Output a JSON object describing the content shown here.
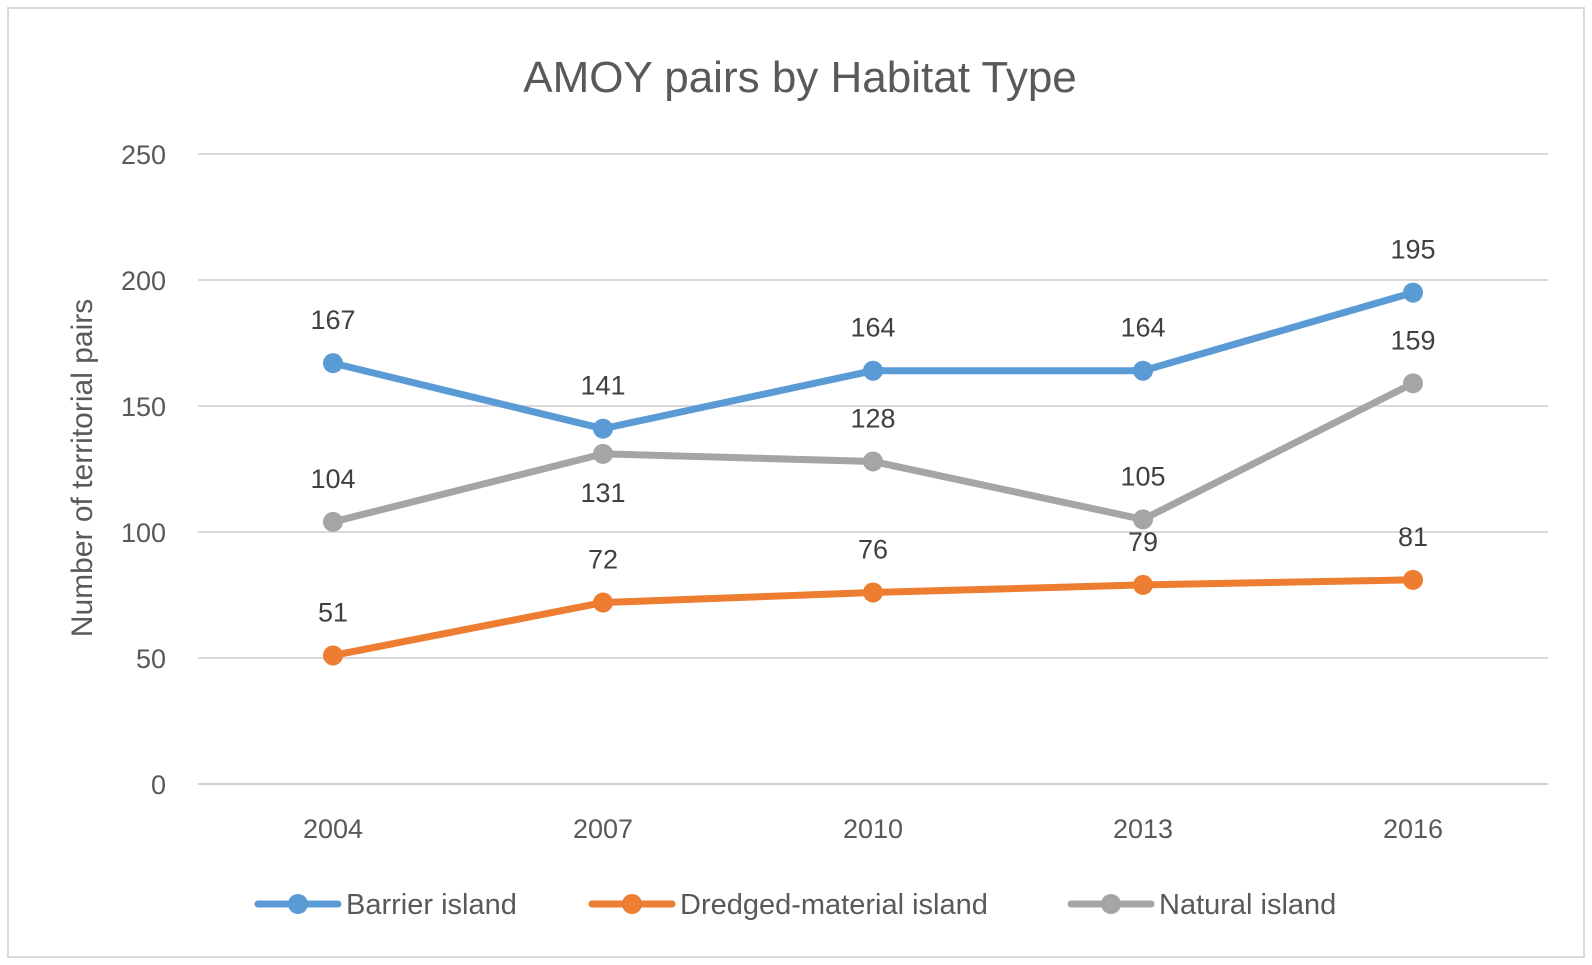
{
  "chart_data": {
    "type": "line",
    "title": "AMOY pairs by Habitat Type",
    "xlabel": "",
    "ylabel": "Number of territorial pairs",
    "categories": [
      "2004",
      "2007",
      "2010",
      "2013",
      "2016"
    ],
    "ylim": [
      0,
      250
    ],
    "yticks": [
      0,
      50,
      100,
      150,
      200,
      250
    ],
    "grid": true,
    "legend_position": "bottom",
    "series": [
      {
        "name": "Barrier island",
        "color": "#5B9BD5",
        "values": [
          167,
          141,
          164,
          164,
          195
        ],
        "labels": [
          "167",
          "141",
          "164",
          "164",
          "195"
        ]
      },
      {
        "name": "Dredged-material island",
        "color": "#ED7D31",
        "values": [
          51,
          72,
          76,
          79,
          81
        ],
        "labels": [
          "51",
          "72",
          "76",
          "79",
          "81"
        ]
      },
      {
        "name": "Natural island",
        "color": "#A5A5A5",
        "values": [
          104,
          131,
          128,
          105,
          159
        ],
        "labels": [
          "104",
          "131",
          "128",
          "105",
          "159"
        ]
      }
    ]
  }
}
